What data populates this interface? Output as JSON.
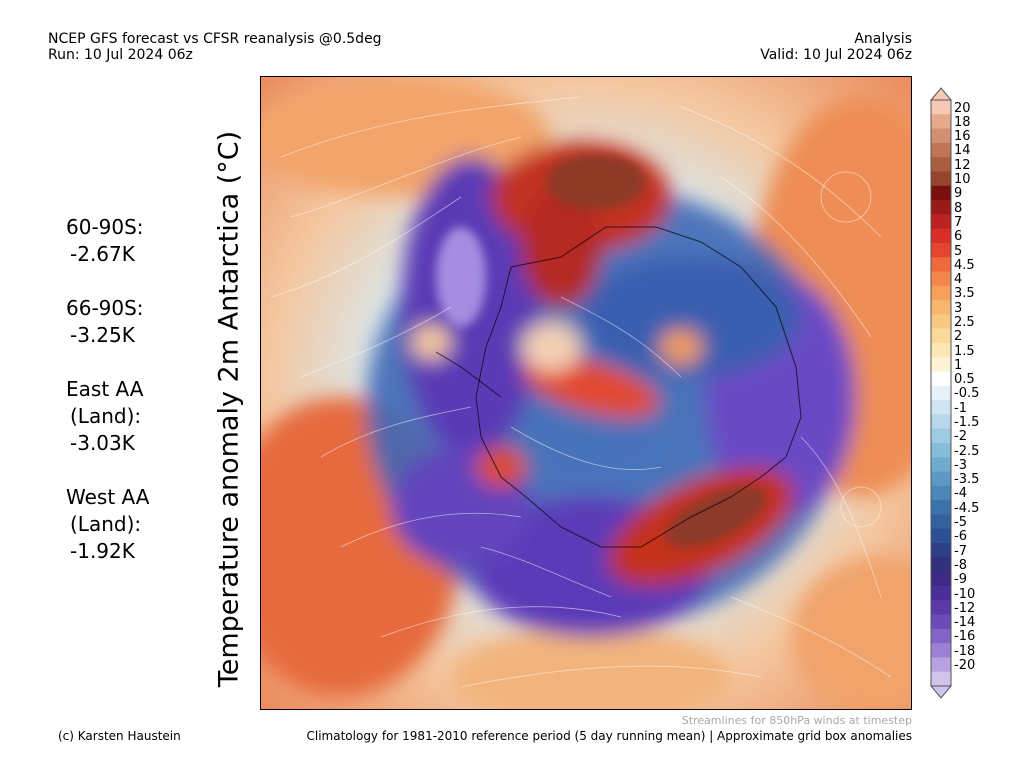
{
  "header": {
    "title_line1": "NCEP GFS forecast vs CFSR reanalysis @0.5deg",
    "title_line2": "Run: 10 Jul 2024 06z",
    "right_line1": "Analysis",
    "right_line2": "Valid: 10 Jul 2024 06z"
  },
  "yaxis_title": "Temperature anomaly 2m Antarctica (°C)",
  "stats": [
    {
      "lines": [
        "60-90S:",
        " -2.67K"
      ]
    },
    {
      "lines": [
        "66-90S:",
        " -3.25K"
      ]
    },
    {
      "lines": [
        "East AA",
        " (Land):",
        " -3.03K"
      ]
    },
    {
      "lines": [
        "West AA",
        " (Land):",
        " -1.92K"
      ]
    }
  ],
  "colorbar": {
    "labels": [
      "20",
      "18",
      "16",
      "14",
      "12",
      "10",
      "9",
      "8",
      "7",
      "6",
      "5",
      "4.5",
      "4",
      "3.5",
      "3",
      "2.5",
      "2",
      "1.5",
      "1",
      "0.5",
      "-0.5",
      "-1",
      "-1.5",
      "-2",
      "-2.5",
      "-3",
      "-3.5",
      "-4",
      "-4.5",
      "-5",
      "-6",
      "-7",
      "-8",
      "-9",
      "-10",
      "-12",
      "-14",
      "-16",
      "-18",
      "-20"
    ],
    "colors": [
      "#f6c9b4",
      "#e6a98c",
      "#d38f73",
      "#bf7658",
      "#a95e42",
      "#96452d",
      "#7a0f0f",
      "#9c1a1a",
      "#bd2222",
      "#d72f25",
      "#e44530",
      "#ee6a3c",
      "#f3864c",
      "#f6a05c",
      "#f8b66f",
      "#f9c984",
      "#fbd99a",
      "#fde7b5",
      "#fef3d6",
      "#ffffff",
      "#e6f2f8",
      "#cfe6f1",
      "#b6d8e9",
      "#9ecbe1",
      "#87bcd8",
      "#71abcd",
      "#5d99c2",
      "#4a86b7",
      "#3c72ab",
      "#32619e",
      "#2d4f93",
      "#2e3e87",
      "#32307a",
      "#3d2a86",
      "#4b2f99",
      "#5a3aa9",
      "#6c4bb8",
      "#8263c6",
      "#9a81d3",
      "#b6a2e0",
      "#d1c4ec"
    ]
  },
  "footer": {
    "left": "(c) Karsten Haustein",
    "right": "Climatology for 1981-2010 reference period (5 day running mean) | Approximate grid box anomalies",
    "note": "Streamlines for 850hPa winds at timestep"
  },
  "map": {
    "description_colors": {
      "warm": "#e8683a",
      "hot": "#a9402a",
      "cold": "#3f63b4",
      "very_cold": "#6a43c4",
      "neutral": "#f0e8dc"
    }
  }
}
